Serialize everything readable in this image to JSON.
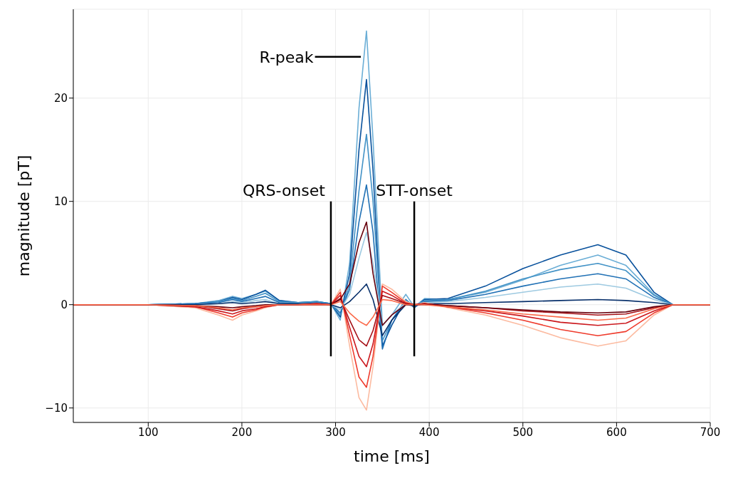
{
  "chart_data": {
    "type": "line",
    "xlabel": "time [ms]",
    "ylabel": "magnitude [pT]",
    "xlim": [
      20,
      700
    ],
    "xticks": [
      100,
      200,
      300,
      400,
      500,
      600,
      700
    ],
    "ylim": [
      -11.4,
      28.6
    ],
    "yticks": [
      -10,
      0,
      10,
      20
    ],
    "grid": true,
    "marker": "none",
    "line_style": "solid",
    "x": [
      20,
      100,
      150,
      175,
      190,
      200,
      215,
      225,
      240,
      260,
      280,
      295,
      305,
      315,
      325,
      333,
      340,
      350,
      360,
      375,
      384,
      395,
      420,
      460,
      500,
      540,
      580,
      610,
      640,
      660,
      700
    ],
    "series": [
      {
        "color": "#6baed6",
        "values": [
          0,
          0,
          0.1,
          0.4,
          0.8,
          0.6,
          1.0,
          1.3,
          0.4,
          0.2,
          0.3,
          0.1,
          -1.5,
          4,
          19,
          26.5,
          16,
          -2,
          -1,
          1,
          -0.2,
          0.6,
          0.5,
          1.2,
          2.4,
          3.8,
          4.8,
          3.8,
          1,
          0,
          0
        ]
      },
      {
        "color": "#08519c",
        "values": [
          0,
          0,
          0.1,
          0.3,
          0.7,
          0.5,
          1.0,
          1.4,
          0.4,
          0.2,
          0.3,
          0.1,
          -1.2,
          3,
          15,
          21.8,
          13,
          -4,
          -2,
          0.5,
          -0.3,
          0.5,
          0.6,
          1.8,
          3.5,
          4.8,
          5.8,
          4.8,
          1.2,
          0,
          0
        ]
      },
      {
        "color": "#4292c6",
        "values": [
          0,
          0,
          0.1,
          0.3,
          0.6,
          0.4,
          0.8,
          1.1,
          0.3,
          0.2,
          0.3,
          0.1,
          -1,
          2,
          11,
          16.5,
          10,
          -3.5,
          -1.5,
          0.5,
          -0.2,
          0.4,
          0.5,
          1.3,
          2.5,
          3.4,
          4,
          3.3,
          0.9,
          0,
          0
        ]
      },
      {
        "color": "#2171b5",
        "values": [
          0,
          0,
          0.1,
          0.2,
          0.5,
          0.3,
          0.6,
          0.8,
          0.2,
          0.1,
          0.2,
          0.1,
          -0.8,
          1.5,
          8,
          11.6,
          7,
          -4.3,
          -1.5,
          0.3,
          -0.2,
          0.3,
          0.4,
          1,
          1.8,
          2.5,
          3,
          2.5,
          0.7,
          0,
          0
        ]
      },
      {
        "color": "#9ecae1",
        "values": [
          0,
          0,
          0,
          0.1,
          0.3,
          0.2,
          0.4,
          0.5,
          0.1,
          0.1,
          0.1,
          0,
          -0.5,
          1,
          4.5,
          7,
          4,
          -2,
          -1,
          0.2,
          -0.1,
          0.2,
          0.3,
          0.7,
          1.2,
          1.7,
          2,
          1.6,
          0.5,
          0,
          0
        ]
      },
      {
        "color": "#08306b",
        "values": [
          0,
          0,
          0,
          0.1,
          0.2,
          0.1,
          0.2,
          0.3,
          0.1,
          0.1,
          0.1,
          0,
          -0.3,
          0.3,
          1.2,
          2,
          0.5,
          -3,
          -1.5,
          0,
          -0.1,
          0.1,
          0.1,
          0.2,
          0.3,
          0.4,
          0.5,
          0.4,
          0.2,
          0,
          0
        ]
      },
      {
        "color": "#fcbba1",
        "values": [
          0,
          0,
          -0.3,
          -1,
          -1.5,
          -1,
          -0.6,
          -0.3,
          0,
          0,
          0.1,
          0,
          1.5,
          -4,
          -9,
          -10.2,
          -6,
          2,
          1.5,
          0.3,
          0,
          0.2,
          -0.3,
          -1,
          -2,
          -3.2,
          -4,
          -3.5,
          -1,
          0,
          0
        ]
      },
      {
        "color": "#ef3b2c",
        "values": [
          0,
          0,
          -0.2,
          -0.8,
          -1.2,
          -0.8,
          -0.5,
          -0.2,
          0,
          0,
          0.1,
          0,
          1.2,
          -3,
          -7,
          -8,
          -5,
          1.8,
          1.2,
          0.2,
          0,
          0.1,
          -0.2,
          -0.8,
          -1.5,
          -2.4,
          -3,
          -2.6,
          -0.8,
          0,
          0
        ]
      },
      {
        "color": "#cb181d",
        "values": [
          0,
          0,
          -0.2,
          -0.6,
          -0.9,
          -0.6,
          -0.4,
          -0.2,
          0,
          0,
          0.1,
          0,
          0.9,
          -2.2,
          -5,
          -6,
          -3.8,
          1.3,
          0.9,
          0.1,
          0,
          0.1,
          -0.2,
          -0.6,
          -1.1,
          -1.7,
          -2,
          -1.8,
          -0.6,
          0,
          0
        ]
      },
      {
        "color": "#a50f15",
        "values": [
          0,
          0,
          -0.1,
          -0.4,
          -0.6,
          -0.4,
          -0.2,
          -0.1,
          0,
          0,
          0,
          0,
          0.6,
          -1.5,
          -3.4,
          -4,
          -2.5,
          0.9,
          0.6,
          0.1,
          0,
          0.1,
          -0.1,
          -0.3,
          -0.6,
          -0.8,
          -1,
          -0.9,
          -0.3,
          0,
          0
        ]
      },
      {
        "color": "#67000d",
        "values": [
          0,
          0,
          -0.1,
          -0.2,
          -0.3,
          -0.2,
          -0.1,
          0,
          0,
          0,
          0,
          0,
          0.5,
          2,
          6,
          8,
          3,
          -2,
          -1,
          0,
          0,
          0,
          -0.1,
          -0.3,
          -0.5,
          -0.7,
          -0.8,
          -0.7,
          -0.2,
          0,
          0
        ]
      },
      {
        "color": "#fb6a4a",
        "values": [
          0,
          0,
          -0.1,
          -0.3,
          -0.5,
          -0.3,
          -0.2,
          -0.1,
          0,
          0,
          0,
          0,
          0.3,
          -0.8,
          -1.6,
          -2,
          -1.2,
          0.5,
          0.4,
          0,
          0,
          0,
          -0.2,
          -0.5,
          -0.9,
          -1.2,
          -1.5,
          -1.3,
          -0.4,
          0,
          0
        ]
      },
      {
        "color": "#000000",
        "x": [
          295,
          295
        ],
        "values": [
          -5,
          10
        ]
      },
      {
        "color": "#000000",
        "x": [
          384,
          384
        ],
        "values": [
          -5,
          10
        ]
      },
      {
        "color": "#000000",
        "x": [
          278,
          327
        ],
        "values": [
          24,
          24
        ]
      }
    ],
    "annotations": [
      "QRS-onset",
      "STT-onset",
      "R-peak"
    ]
  }
}
